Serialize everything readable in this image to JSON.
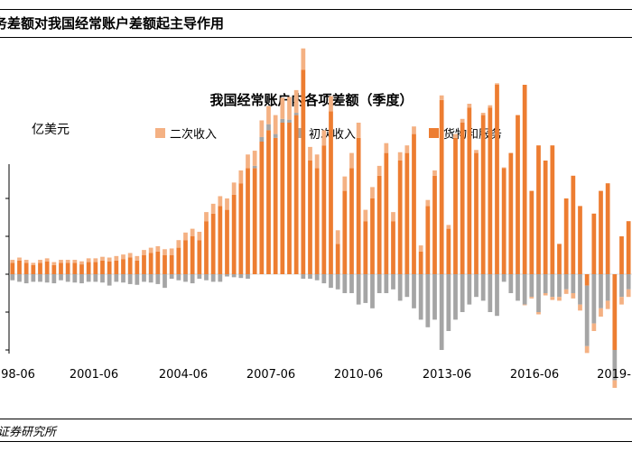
{
  "header": {
    "title": "务差额对我国经常账户差额起主导作用"
  },
  "footer": {
    "source": "证券研究所"
  },
  "chart_data": {
    "type": "bar",
    "stacked": true,
    "title": "我国经常账户内各项差额（季度）",
    "ylabel": "亿美元",
    "xlabel": "",
    "y_tick_labels": [],
    "ylim": [
      -2000,
      3000
    ],
    "legend_position": "top",
    "grid": false,
    "x_tick_labels": [
      "98-06",
      "2001-06",
      "2004-06",
      "2007-06",
      "2010-06",
      "2013-06",
      "2016-06",
      "2019-"
    ],
    "categories": [
      "1998Q2",
      "1998Q3",
      "1998Q4",
      "1999Q1",
      "1999Q2",
      "1999Q3",
      "1999Q4",
      "2000Q1",
      "2000Q2",
      "2000Q3",
      "2000Q4",
      "2001Q1",
      "2001Q2",
      "2001Q3",
      "2001Q4",
      "2002Q1",
      "2002Q2",
      "2002Q3",
      "2002Q4",
      "2003Q1",
      "2003Q2",
      "2003Q3",
      "2003Q4",
      "2004Q1",
      "2004Q2",
      "2004Q3",
      "2004Q4",
      "2005Q1",
      "2005Q2",
      "2005Q3",
      "2005Q4",
      "2006Q1",
      "2006Q2",
      "2006Q3",
      "2006Q4",
      "2007Q1",
      "2007Q2",
      "2007Q3",
      "2007Q4",
      "2008Q1",
      "2008Q2",
      "2008Q3",
      "2008Q4",
      "2009Q1",
      "2009Q2",
      "2009Q3",
      "2009Q4",
      "2010Q1",
      "2010Q2",
      "2010Q3",
      "2010Q4",
      "2011Q1",
      "2011Q2",
      "2011Q3",
      "2011Q4",
      "2012Q1",
      "2012Q2",
      "2012Q3",
      "2012Q4",
      "2013Q1",
      "2013Q2",
      "2013Q3",
      "2013Q4",
      "2014Q1",
      "2014Q2",
      "2014Q3",
      "2014Q4",
      "2015Q1",
      "2015Q2",
      "2015Q3",
      "2015Q4",
      "2016Q1",
      "2016Q2",
      "2016Q3",
      "2016Q4",
      "2017Q1",
      "2017Q2",
      "2017Q3",
      "2017Q4",
      "2018Q1",
      "2018Q2",
      "2018Q3",
      "2018Q4",
      "2019Q1",
      "2019Q2",
      "2019Q3",
      "2019Q4",
      "2020Q1",
      "2020Q2",
      "2020Q3"
    ],
    "series": [
      {
        "name": "二次收入",
        "color": "#f4b183",
        "values": [
          40,
          40,
          40,
          30,
          40,
          40,
          40,
          40,
          40,
          40,
          40,
          50,
          50,
          50,
          50,
          60,
          60,
          60,
          60,
          70,
          70,
          70,
          80,
          90,
          100,
          100,
          100,
          110,
          120,
          130,
          130,
          150,
          160,
          170,
          180,
          200,
          220,
          240,
          250,
          280,
          300,
          300,
          280,
          180,
          180,
          200,
          200,
          180,
          190,
          200,
          200,
          150,
          150,
          130,
          130,
          120,
          110,
          100,
          100,
          80,
          80,
          70,
          60,
          50,
          50,
          50,
          50,
          40,
          30,
          30,
          20,
          10,
          0,
          0,
          -10,
          -20,
          -30,
          -30,
          -40,
          -50,
          -60,
          -70,
          -80,
          -90,
          -100,
          -110,
          -110,
          -100,
          -100,
          -100
        ]
      },
      {
        "name": "初次收入",
        "color": "#a5a5a5",
        "values": [
          -80,
          -100,
          -120,
          -100,
          -100,
          -110,
          -120,
          -80,
          -100,
          -110,
          -120,
          -100,
          -100,
          -110,
          -150,
          -100,
          -110,
          -130,
          -140,
          -100,
          -110,
          -130,
          -180,
          -60,
          -80,
          -100,
          -120,
          -60,
          -80,
          -100,
          -100,
          -30,
          -40,
          -50,
          -60,
          30,
          60,
          80,
          50,
          50,
          40,
          30,
          -60,
          -60,
          -80,
          -120,
          -180,
          -200,
          -250,
          -250,
          -400,
          -380,
          -450,
          -250,
          -250,
          -200,
          -350,
          -300,
          -450,
          -600,
          -700,
          -600,
          -1000,
          -750,
          -600,
          -500,
          -400,
          -300,
          -350,
          -500,
          -550,
          -100,
          -250,
          -350,
          -400,
          -300,
          -500,
          -250,
          -300,
          -300,
          -200,
          -250,
          -400,
          -800,
          -650,
          -450,
          -350,
          -400,
          -300,
          -200
        ]
      },
      {
        "name": "货物和服务",
        "color": "#ed7d31",
        "values": [
          150,
          180,
          150,
          120,
          150,
          170,
          120,
          150,
          150,
          150,
          130,
          160,
          160,
          180,
          170,
          180,
          200,
          220,
          180,
          250,
          280,
          300,
          250,
          250,
          350,
          450,
          500,
          450,
          700,
          800,
          900,
          850,
          1050,
          1200,
          1400,
          1400,
          1750,
          1900,
          1800,
          2000,
          2000,
          2100,
          2700,
          1500,
          1400,
          1700,
          2150,
          400,
          1100,
          1400,
          1800,
          700,
          1000,
          1300,
          1600,
          700,
          1500,
          1600,
          1850,
          300,
          900,
          1300,
          2300,
          600,
          1800,
          2000,
          2200,
          1600,
          2100,
          2200,
          2500,
          1400,
          1600,
          2100,
          2500,
          1100,
          1700,
          1500,
          1700,
          400,
          1000,
          1300,
          900,
          -150,
          800,
          1100,
          1200,
          -1000,
          500,
          700
        ]
      }
    ]
  }
}
